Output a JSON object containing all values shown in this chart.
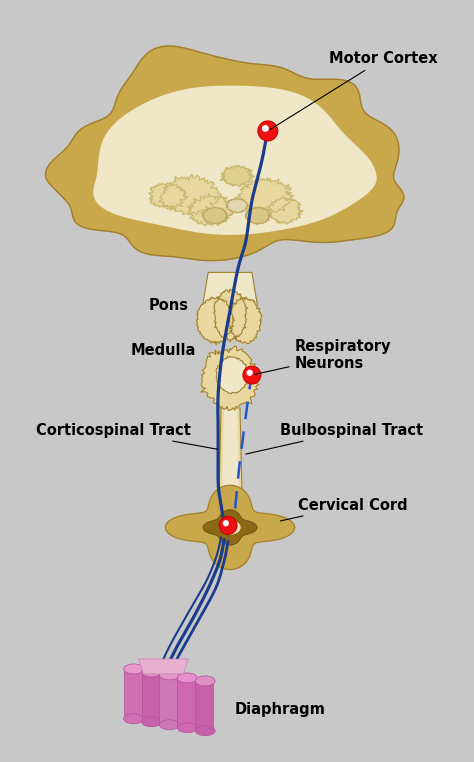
{
  "background_color": "#c8c8c8",
  "fig_width": 4.74,
  "fig_height": 7.62,
  "dpi": 100,
  "labels": {
    "motor_cortex": "Motor Cortex",
    "pons": "Pons",
    "medulla": "Medulla",
    "respiratory_neurons": "Respiratory\nNeurons",
    "corticospinal_tract": "Corticospinal Tract",
    "bulbospinal_tract": "Bulbospinal Tract",
    "cervical_cord": "Cervical Cord",
    "diaphragm": "Diaphragm"
  },
  "tract_color": "#1a3c8c",
  "tract_linewidth": 2.0,
  "dashed_color": "#2255cc",
  "dashed_linewidth": 1.8,
  "brain_outer_color": "#c8a84b",
  "brain_inner_color": "#f0e6c8",
  "brain_mid_color": "#e8d8a0",
  "node_color": "#ee1111",
  "node_white": "#ffffff"
}
